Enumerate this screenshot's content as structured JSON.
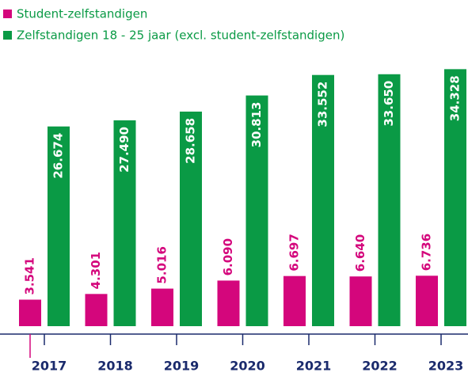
{
  "chart_data": {
    "type": "bar",
    "categories": [
      "2017",
      "2018",
      "2019",
      "2020",
      "2021",
      "2022",
      "2023"
    ],
    "series": [
      {
        "name": "Student-zelfstandigen",
        "color": "#d4067c",
        "values": [
          3541,
          4301,
          5016,
          6090,
          6697,
          6640,
          6736
        ],
        "value_labels": [
          "3.541",
          "4.301",
          "5.016",
          "6.090",
          "6.697",
          "6.640",
          "6.736"
        ]
      },
      {
        "name": "Zelfstandigen 18 - 25 jaar (excl. student-zelfstandigen)",
        "color": "#0a9a45",
        "values": [
          26674,
          27490,
          28658,
          30813,
          33552,
          33650,
          34328
        ],
        "value_labels": [
          "26.674",
          "27.490",
          "28.658",
          "30.813",
          "33.552",
          "33.650",
          "34.328"
        ]
      }
    ],
    "ylim": [
      0,
      35000
    ]
  }
}
